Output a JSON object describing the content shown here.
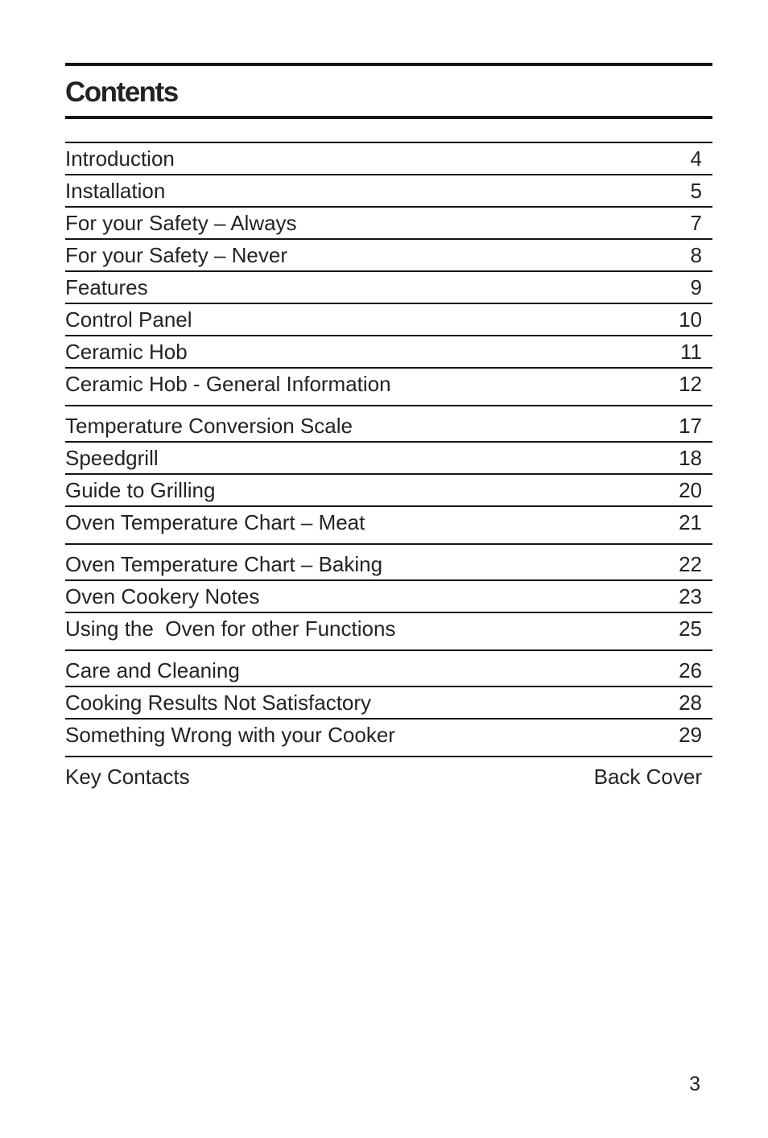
{
  "header": {
    "title": "Contents"
  },
  "toc": {
    "groups": [
      {
        "entries": [
          {
            "label": "Introduction",
            "page": "4"
          },
          {
            "label": "Installation",
            "page": "5"
          },
          {
            "label": "For your Safety – Always",
            "page": "7"
          },
          {
            "label": "For your Safety – Never",
            "page": "8"
          },
          {
            "label": "Features",
            "page": "9"
          },
          {
            "label": "Control Panel",
            "page": "10"
          },
          {
            "label": "Ceramic Hob",
            "page": "11"
          },
          {
            "label": "Ceramic Hob - General Information",
            "page": "12"
          }
        ]
      },
      {
        "entries": [
          {
            "label": "Temperature Conversion Scale",
            "page": "17"
          },
          {
            "label": "Speedgrill",
            "page": "18"
          },
          {
            "label": "Guide to Grilling",
            "page": "20"
          },
          {
            "label": "Oven Temperature Chart – Meat",
            "page": "21"
          }
        ]
      },
      {
        "entries": [
          {
            "label": "Oven Temperature Chart – Baking",
            "page": "22"
          },
          {
            "label": "Oven Cookery Notes",
            "page": "23"
          },
          {
            "label": "Using the  Oven for other Functions",
            "page": "25"
          }
        ]
      },
      {
        "entries": [
          {
            "label": "Care and Cleaning",
            "page": "26"
          },
          {
            "label": "Cooking Results Not Satisfactory",
            "page": "28"
          },
          {
            "label": "Something Wrong with your Cooker",
            "page": "29"
          }
        ]
      },
      {
        "entries": [
          {
            "label": "Key Contacts",
            "page": "Back Cover"
          }
        ]
      }
    ]
  },
  "footer": {
    "page_number": "3"
  },
  "colors": {
    "text": "#232323",
    "rule": "#161616",
    "background": "#ffffff"
  }
}
